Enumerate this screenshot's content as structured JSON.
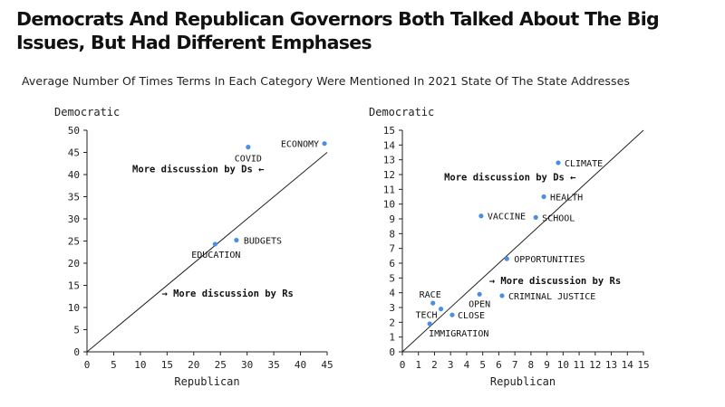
{
  "title": "Democrats And Republican Governors Both Talked About The Big Issues, But Had Different Emphases",
  "subtitle": "Average Number Of Times Terms In Each Category Were Mentioned In 2021 State Of The State Addresses",
  "colors": {
    "point": "#4a8fe0",
    "axis": "#222222"
  },
  "chart_data": [
    {
      "type": "scatter",
      "xlabel": "Republican",
      "ylabel": "Democratic",
      "xlim": [
        0,
        45
      ],
      "ylim": [
        0,
        50
      ],
      "xticks": [
        0,
        5,
        10,
        15,
        20,
        25,
        30,
        35,
        40,
        45
      ],
      "yticks": [
        0,
        5,
        10,
        15,
        20,
        25,
        30,
        35,
        40,
        45,
        50
      ],
      "diagonal": true,
      "points": [
        {
          "label": "ECONOMY",
          "x": 44.5,
          "y": 47
        },
        {
          "label": "COVID",
          "x": 30.2,
          "y": 46.2
        },
        {
          "label": "BUDGETS",
          "x": 28,
          "y": 25.2
        },
        {
          "label": "EDUCATION",
          "x": 24,
          "y": 24.3
        }
      ],
      "annotations": [
        {
          "text": "More discussion by Ds ←",
          "x": 8.5,
          "y": 40.5
        },
        {
          "text": "→ More discussion by Rs",
          "x": 14,
          "y": 12.5
        }
      ]
    },
    {
      "type": "scatter",
      "xlabel": "Republican",
      "ylabel": "Democratic",
      "xlim": [
        0,
        15
      ],
      "ylim": [
        0,
        15
      ],
      "xticks": [
        0,
        1,
        2,
        3,
        4,
        5,
        6,
        7,
        8,
        9,
        10,
        11,
        12,
        13,
        14,
        15
      ],
      "yticks": [
        0,
        1,
        2,
        3,
        4,
        5,
        6,
        7,
        8,
        9,
        10,
        11,
        12,
        13,
        14,
        15
      ],
      "diagonal": true,
      "points": [
        {
          "label": "CLIMATE",
          "x": 9.7,
          "y": 12.8
        },
        {
          "label": "HEALTH",
          "x": 8.8,
          "y": 10.5
        },
        {
          "label": "SCHOOL",
          "x": 8.3,
          "y": 9.1
        },
        {
          "label": "VACCINE",
          "x": 4.9,
          "y": 9.2
        },
        {
          "label": "OPPORTUNITIES",
          "x": 6.5,
          "y": 6.3
        },
        {
          "label": "CRIMINAL JUSTICE",
          "x": 6.2,
          "y": 3.8
        },
        {
          "label": "OPEN",
          "x": 4.8,
          "y": 3.9
        },
        {
          "label": "RACE",
          "x": 1.9,
          "y": 3.3
        },
        {
          "label": "TECH",
          "x": 2.4,
          "y": 2.9
        },
        {
          "label": "CLOSE",
          "x": 3.1,
          "y": 2.5
        },
        {
          "label": "IMMIGRATION",
          "x": 1.7,
          "y": 1.9
        }
      ],
      "annotations": [
        {
          "text": "More discussion by Ds ←",
          "x": 2.6,
          "y": 11.6
        },
        {
          "text": "→ More discussion by Rs",
          "x": 5.4,
          "y": 4.6
        }
      ]
    }
  ]
}
